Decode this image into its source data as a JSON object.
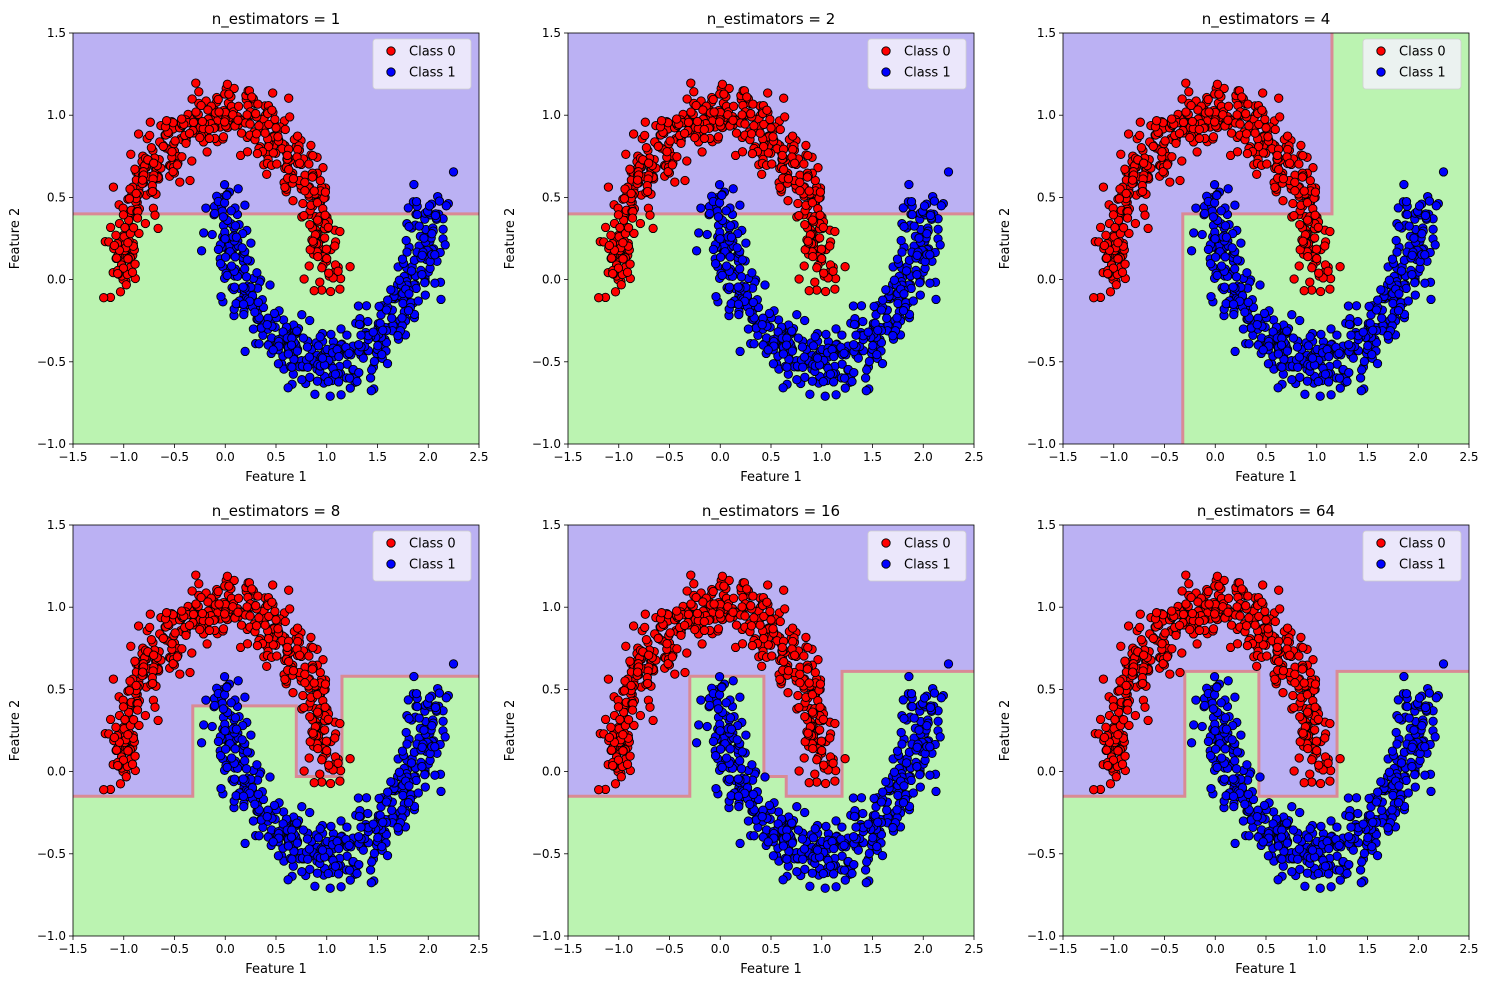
{
  "chart_data": [
    {
      "type": "scatter",
      "title": "n_estimators = 1",
      "xlabel": "Feature 1",
      "ylabel": "Feature 2",
      "xlim": [
        -1.5,
        2.5
      ],
      "ylim": [
        -1.0,
        1.5
      ],
      "xticks": [
        "−1.5",
        "−1.0",
        "−0.5",
        "0.0",
        "0.5",
        "1.0",
        "1.5",
        "2.0",
        "2.5"
      ],
      "yticks": [
        "−1.0",
        "−0.5",
        "0.0",
        "0.5",
        "1.0",
        "1.5"
      ],
      "legend": [
        "Class 0",
        "Class 1"
      ],
      "legend_position": "top-right",
      "grid": false,
      "boundary": [
        [
          -1.5,
          0.4
        ],
        [
          2.5,
          0.4
        ]
      ]
    },
    {
      "type": "scatter",
      "title": "n_estimators = 2",
      "xlabel": "Feature 1",
      "ylabel": "Feature 2",
      "xlim": [
        -1.5,
        2.5
      ],
      "ylim": [
        -1.0,
        1.5
      ],
      "xticks": [
        "−1.5",
        "−1.0",
        "−0.5",
        "0.0",
        "0.5",
        "1.0",
        "1.5",
        "2.0",
        "2.5"
      ],
      "yticks": [
        "−1.0",
        "−0.5",
        "0.0",
        "0.5",
        "1.0",
        "1.5"
      ],
      "legend": [
        "Class 0",
        "Class 1"
      ],
      "legend_position": "top-right",
      "grid": false,
      "boundary": [
        [
          -1.5,
          0.4
        ],
        [
          2.5,
          0.4
        ]
      ]
    },
    {
      "type": "scatter",
      "title": "n_estimators = 4",
      "xlabel": "Feature 1",
      "ylabel": "Feature 2",
      "xlim": [
        -1.5,
        2.5
      ],
      "ylim": [
        -1.0,
        1.5
      ],
      "xticks": [
        "−1.5",
        "−1.0",
        "−0.5",
        "0.0",
        "0.5",
        "1.0",
        "1.5",
        "2.0",
        "2.5"
      ],
      "yticks": [
        "−1.0",
        "−0.5",
        "0.0",
        "0.5",
        "1.0",
        "1.5"
      ],
      "legend": [
        "Class 0",
        "Class 1"
      ],
      "legend_position": "top-right",
      "grid": false,
      "boundary": [
        [
          -0.32,
          -1.0
        ],
        [
          -0.32,
          0.4
        ],
        [
          1.15,
          0.4
        ],
        [
          1.15,
          1.5
        ]
      ]
    },
    {
      "type": "scatter",
      "title": "n_estimators = 8",
      "xlabel": "Feature 1",
      "ylabel": "Feature 2",
      "xlim": [
        -1.5,
        2.5
      ],
      "ylim": [
        -1.0,
        1.5
      ],
      "xticks": [
        "−1.5",
        "−1.0",
        "−0.5",
        "0.0",
        "0.5",
        "1.0",
        "1.5",
        "2.0",
        "2.5"
      ],
      "yticks": [
        "−1.0",
        "−0.5",
        "0.0",
        "0.5",
        "1.0",
        "1.5"
      ],
      "legend": [
        "Class 0",
        "Class 1"
      ],
      "legend_position": "top-right",
      "grid": false,
      "boundary": [
        [
          -1.5,
          -0.15
        ],
        [
          -0.32,
          -0.15
        ],
        [
          -0.32,
          0.4
        ],
        [
          0.7,
          0.4
        ],
        [
          0.7,
          -0.03
        ],
        [
          1.15,
          -0.03
        ],
        [
          1.15,
          0.58
        ],
        [
          2.5,
          0.58
        ]
      ]
    },
    {
      "type": "scatter",
      "title": "n_estimators = 16",
      "xlabel": "Feature 1",
      "ylabel": "Feature 2",
      "xlim": [
        -1.5,
        2.5
      ],
      "ylim": [
        -1.0,
        1.5
      ],
      "xticks": [
        "−1.5",
        "−1.0",
        "−0.5",
        "0.0",
        "0.5",
        "1.0",
        "1.5",
        "2.0",
        "2.5"
      ],
      "yticks": [
        "−1.0",
        "−0.5",
        "0.0",
        "0.5",
        "1.0",
        "1.5"
      ],
      "legend": [
        "Class 0",
        "Class 1"
      ],
      "legend_position": "top-right",
      "grid": false,
      "boundary": [
        [
          -1.5,
          -0.15
        ],
        [
          -0.3,
          -0.15
        ],
        [
          -0.3,
          0.58
        ],
        [
          0.43,
          0.58
        ],
        [
          0.43,
          -0.03
        ],
        [
          0.65,
          -0.03
        ],
        [
          0.65,
          -0.15
        ],
        [
          1.2,
          -0.15
        ],
        [
          1.2,
          0.61
        ],
        [
          2.5,
          0.61
        ]
      ]
    },
    {
      "type": "scatter",
      "title": "n_estimators = 64",
      "xlabel": "Feature 1",
      "ylabel": "Feature 2",
      "xlim": [
        -1.5,
        2.5
      ],
      "ylim": [
        -1.0,
        1.5
      ],
      "xticks": [
        "−1.5",
        "−1.0",
        "−0.5",
        "0.0",
        "0.5",
        "1.0",
        "1.5",
        "2.0",
        "2.5"
      ],
      "yticks": [
        "−1.0",
        "−0.5",
        "0.0",
        "0.5",
        "1.0",
        "1.5"
      ],
      "legend": [
        "Class 0",
        "Class 1"
      ],
      "legend_position": "top-right",
      "grid": false,
      "boundary": [
        [
          -1.5,
          -0.15
        ],
        [
          -0.3,
          -0.15
        ],
        [
          -0.3,
          0.61
        ],
        [
          0.43,
          0.61
        ],
        [
          0.43,
          -0.15
        ],
        [
          1.2,
          -0.15
        ],
        [
          1.2,
          0.61
        ],
        [
          2.5,
          0.61
        ]
      ]
    }
  ],
  "colors": {
    "class0_marker": "#ff0000",
    "class1_marker": "#0000ff",
    "marker_edge": "#000000",
    "region_class0": "#bbb1f3",
    "region_class1": "#bbf3b1",
    "boundary": "#d98a95",
    "legend_bg": "#f3f1fb"
  },
  "dataset": {
    "type": "two interleaving half-moons",
    "points_per_class": 500,
    "noise": 0.1,
    "class0": {
      "name": "Class 0",
      "center": [
        0.0,
        0.0
      ],
      "radius": 1.0,
      "arc": "upper"
    },
    "class1": {
      "name": "Class 1",
      "center": [
        1.0,
        0.5
      ],
      "radius": 1.0,
      "arc": "lower"
    }
  }
}
